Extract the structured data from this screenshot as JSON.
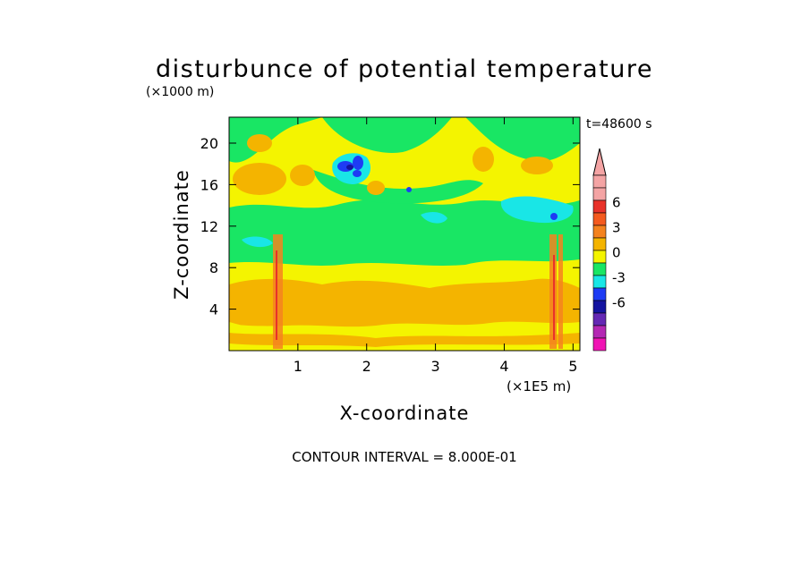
{
  "chart_data": {
    "type": "heatmap",
    "title": "disturbunce of potential temperature",
    "y_unit_label": "(×1000 m)",
    "x_unit_label": "(×1E5 m)",
    "time_label": "t=48600 s",
    "xlabel": "X-coordinate",
    "ylabel": "Z-coordinate",
    "xlim": [
      0,
      5.1
    ],
    "ylim": [
      0,
      22.5
    ],
    "x_ticks": [
      "1",
      "2",
      "3",
      "4",
      "5"
    ],
    "y_ticks": [
      "4",
      "8",
      "12",
      "16",
      "20"
    ],
    "footer": "CONTOUR INTERVAL = 8.000E-01",
    "colorbar": {
      "labels": [
        "6",
        "3",
        "0",
        "-3",
        "-6"
      ],
      "levels": [
        6,
        3,
        0,
        -3,
        -6
      ],
      "colors_top_to_bottom": [
        "#f4a4a4",
        "#f4a4a4",
        "#e8322a",
        "#f45a1e",
        "#f4821e",
        "#f4b400",
        "#f4f400",
        "#19e664",
        "#19e6e6",
        "#1e3cf4",
        "#1414a0",
        "#6428b4",
        "#b428b4",
        "#f014b4"
      ],
      "extend_top_arrow": true
    },
    "field_description": "filled contours; min near -6 (dark blue patches), max near 6 (orange-red streaks)"
  }
}
